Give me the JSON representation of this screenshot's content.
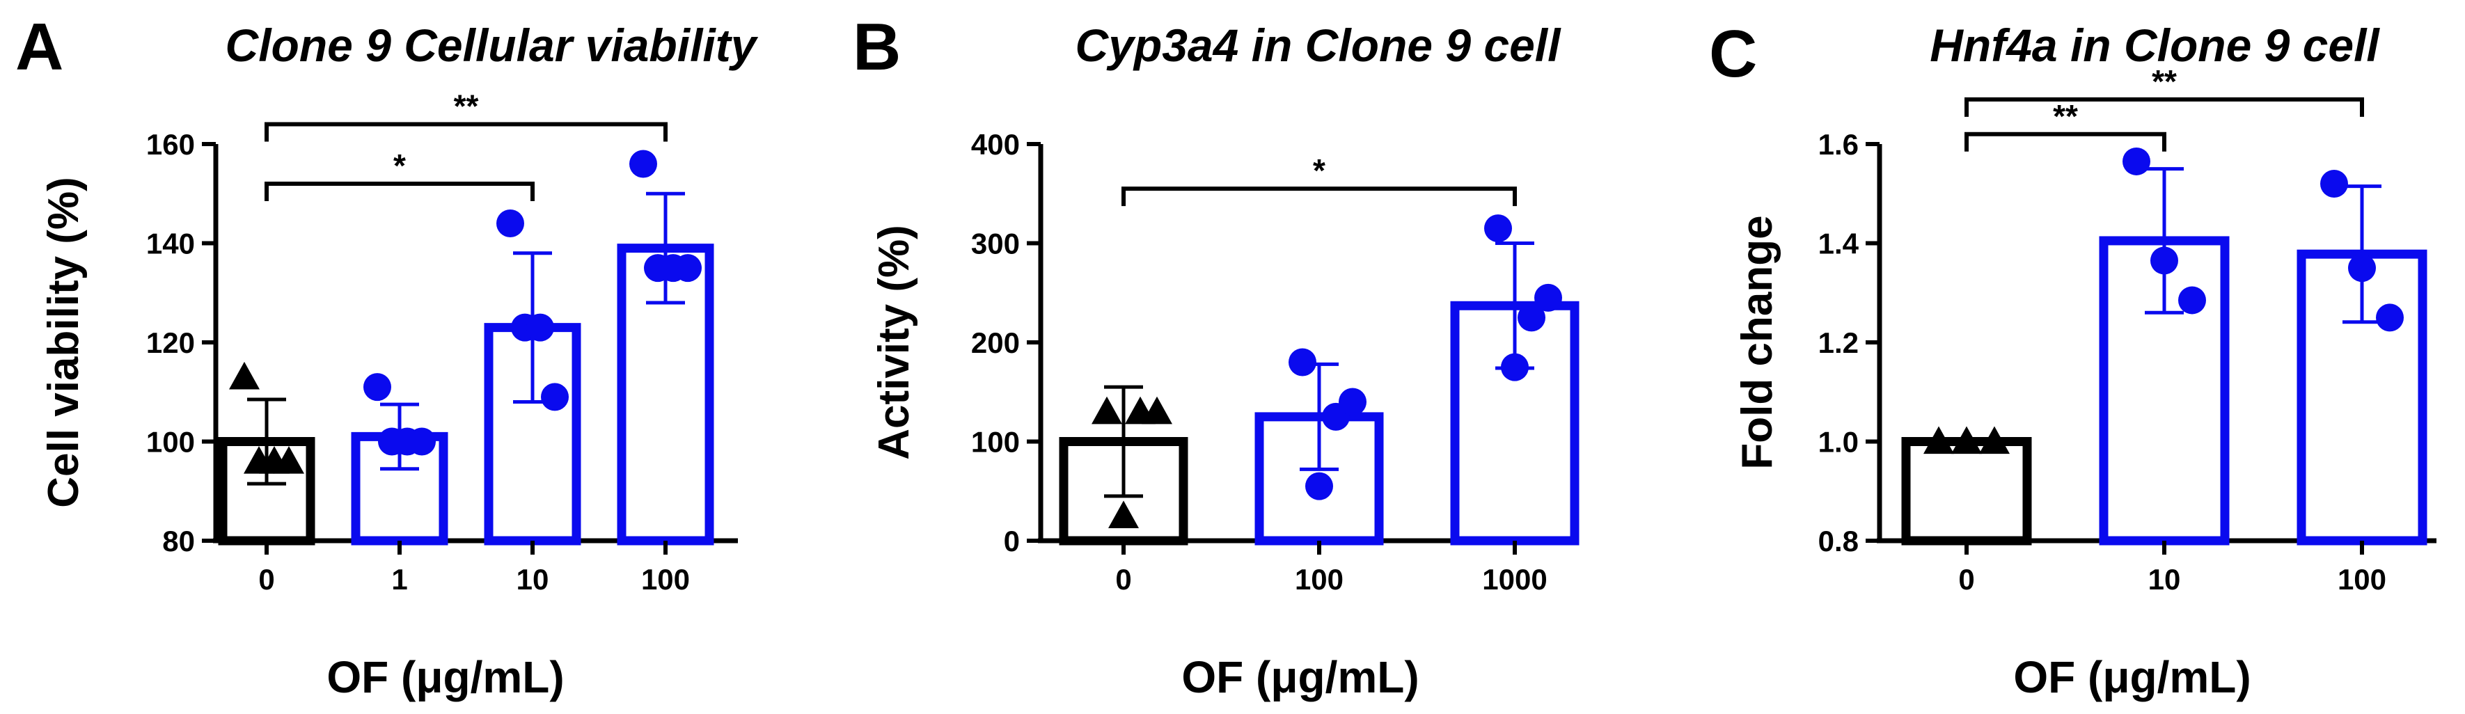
{
  "chart_data": [
    {
      "panel": "A",
      "title": "Clone 9 Cellular viability",
      "type": "bar",
      "xlabel": "OF (μg/mL)",
      "ylabel": "Cell viability (%)",
      "ylim": [
        80,
        160
      ],
      "yticks": [
        "80",
        "100",
        "120",
        "140",
        "160"
      ],
      "yticks_values": [
        80,
        100,
        120,
        140,
        160
      ],
      "categories": [
        "0",
        "1",
        "10",
        "100"
      ],
      "values": [
        100,
        101,
        123,
        139
      ],
      "errors": [
        8.5,
        6.5,
        15,
        11
      ],
      "colors": [
        "#000000",
        "#0a0aee",
        "#0a0aee",
        "#0a0aee"
      ],
      "markers": [
        "triangle",
        "circle",
        "circle",
        "circle"
      ],
      "points": [
        [
          113,
          96,
          96,
          96
        ],
        [
          111,
          100,
          100,
          100
        ],
        [
          144,
          123,
          123,
          109
        ],
        [
          156,
          135,
          135,
          135
        ]
      ],
      "significance": [
        {
          "from": 0,
          "to": 2,
          "label": "*",
          "y": 152
        },
        {
          "from": 0,
          "to": 3,
          "label": "**",
          "y": 164
        }
      ]
    },
    {
      "panel": "B",
      "title": "Cyp3a4 in Clone 9 cell",
      "type": "bar",
      "xlabel": "OF (μg/mL)",
      "ylabel": "Activity (%)",
      "ylim": [
        0,
        400
      ],
      "yticks": [
        "0",
        "100",
        "200",
        "300",
        "400"
      ],
      "yticks_values": [
        0,
        100,
        200,
        300,
        400
      ],
      "categories": [
        "0",
        "100",
        "1000"
      ],
      "values": [
        100,
        125,
        237
      ],
      "errors": [
        55,
        53,
        63
      ],
      "colors": [
        "#000000",
        "#0a0aee",
        "#0a0aee"
      ],
      "markers": [
        "triangle",
        "circle",
        "circle"
      ],
      "points": [
        [
          130,
          130,
          130,
          25
        ],
        [
          180,
          125,
          140,
          55
        ],
        [
          315,
          225,
          245,
          175
        ]
      ],
      "significance": [
        {
          "from": 0,
          "to": 2,
          "label": "*",
          "y": 355
        }
      ]
    },
    {
      "panel": "C",
      "title": "Hnf4a in Clone 9 cell",
      "type": "bar",
      "xlabel": "OF (μg/mL)",
      "ylabel": "Fold change",
      "ylim": [
        0.8,
        1.6
      ],
      "yticks": [
        "0.8",
        "1.0",
        "1.2",
        "1.4",
        "1.6"
      ],
      "yticks_values": [
        0.8,
        1.0,
        1.2,
        1.4,
        1.6
      ],
      "categories": [
        "0",
        "10",
        "100"
      ],
      "values": [
        1.0,
        1.405,
        1.378
      ],
      "errors": [
        0.0,
        0.145,
        0.137
      ],
      "colors": [
        "#000000",
        "#0a0aee",
        "#0a0aee"
      ],
      "markers": [
        "triangle",
        "circle",
        "circle"
      ],
      "points": [
        [
          1.0,
          1.0,
          1.0
        ],
        [
          1.565,
          1.365,
          1.285
        ],
        [
          1.52,
          1.35,
          1.25
        ]
      ],
      "significance": [
        {
          "from": 0,
          "to": 1,
          "label": "**",
          "y": 1.62
        },
        {
          "from": 0,
          "to": 2,
          "label": "**",
          "y": 1.69
        }
      ]
    }
  ]
}
